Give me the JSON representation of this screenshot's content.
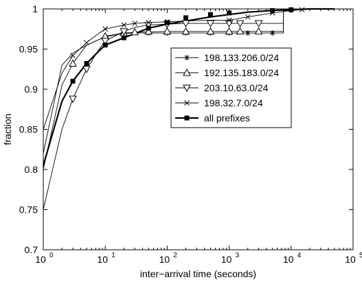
{
  "chart_data": {
    "type": "line",
    "title": "",
    "xlabel": "inter−arrival time (seconds)",
    "ylabel": "fraction",
    "xscale": "log",
    "xlim": [
      1,
      100000
    ],
    "ylim": [
      0.7,
      1.0
    ],
    "grid": false,
    "legend_position": "center-right",
    "x_ticks": [
      {
        "value": 1,
        "base": "10",
        "exp": "0"
      },
      {
        "value": 10,
        "base": "10",
        "exp": "1"
      },
      {
        "value": 100,
        "base": "10",
        "exp": "2"
      },
      {
        "value": 1000,
        "base": "10",
        "exp": "3"
      },
      {
        "value": 10000,
        "base": "10",
        "exp": "4"
      },
      {
        "value": 100000,
        "base": "10",
        "exp": "5"
      }
    ],
    "y_ticks": [
      {
        "value": 0.7,
        "label": "0.7"
      },
      {
        "value": 0.75,
        "label": "0.75"
      },
      {
        "value": 0.8,
        "label": "0.8"
      },
      {
        "value": 0.85,
        "label": "0.85"
      },
      {
        "value": 0.9,
        "label": "0.9"
      },
      {
        "value": 0.95,
        "label": "0.95"
      },
      {
        "value": 1.0,
        "label": "1"
      }
    ],
    "series": [
      {
        "name": "198.133.206.0/24",
        "marker": "star",
        "bold": false,
        "points": [
          [
            1,
            0.82
          ],
          [
            2,
            0.93
          ],
          [
            3,
            0.945
          ],
          [
            5,
            0.955
          ],
          [
            8,
            0.962
          ],
          [
            10,
            0.965
          ],
          [
            15,
            0.968
          ],
          [
            20,
            0.969
          ],
          [
            30,
            0.97
          ],
          [
            100,
            0.97
          ],
          [
            200,
            0.97
          ],
          [
            500,
            0.97
          ],
          [
            1000,
            0.97
          ],
          [
            2000,
            0.97
          ],
          [
            5000,
            0.97
          ],
          [
            7500,
            0.97
          ],
          [
            7500,
            0.997
          ],
          [
            10000,
            0.998
          ],
          [
            20000,
            1.0
          ]
        ],
        "markers": [
          [
            10,
            0.965
          ],
          [
            20,
            0.969
          ],
          [
            50,
            0.97
          ],
          [
            100,
            0.97
          ],
          [
            200,
            0.97
          ],
          [
            500,
            0.97
          ],
          [
            1000,
            0.97
          ],
          [
            2000,
            0.97
          ],
          [
            5000,
            0.97
          ]
        ]
      },
      {
        "name": "192.135.183.0/24",
        "marker": "triangle-up",
        "bold": false,
        "points": [
          [
            1,
            0.8
          ],
          [
            2,
            0.905
          ],
          [
            3,
            0.932
          ],
          [
            5,
            0.955
          ],
          [
            8,
            0.962
          ],
          [
            10,
            0.966
          ],
          [
            20,
            0.97
          ],
          [
            30,
            0.971
          ],
          [
            100,
            0.972
          ],
          [
            1000,
            0.972
          ],
          [
            5000,
            0.972
          ],
          [
            7500,
            0.972
          ],
          [
            7500,
            0.998
          ],
          [
            10000,
            0.999
          ],
          [
            20000,
            1.0
          ]
        ],
        "markers": [
          [
            3,
            0.932
          ],
          [
            10,
            0.966
          ],
          [
            20,
            0.97
          ],
          [
            30,
            0.971
          ],
          [
            50,
            0.972
          ],
          [
            100,
            0.972
          ],
          [
            200,
            0.972
          ],
          [
            500,
            0.972
          ],
          [
            1000,
            0.972
          ],
          [
            1500,
            0.972
          ],
          [
            3000,
            0.972
          ]
        ]
      },
      {
        "name": "203.10.63.0/24",
        "marker": "triangle-down",
        "bold": false,
        "points": [
          [
            1,
            0.75
          ],
          [
            2,
            0.85
          ],
          [
            3,
            0.888
          ],
          [
            5,
            0.925
          ],
          [
            8,
            0.95
          ],
          [
            10,
            0.96
          ],
          [
            20,
            0.972
          ],
          [
            30,
            0.977
          ],
          [
            50,
            0.98
          ],
          [
            100,
            0.981
          ],
          [
            200,
            0.982
          ],
          [
            1000,
            0.982
          ],
          [
            5000,
            0.982
          ],
          [
            7500,
            0.982
          ],
          [
            7500,
            0.999
          ],
          [
            20000,
            1.0
          ]
        ],
        "markers": [
          [
            3,
            0.888
          ],
          [
            5,
            0.925
          ],
          [
            10,
            0.96
          ],
          [
            20,
            0.972
          ],
          [
            50,
            0.98
          ],
          [
            100,
            0.981
          ],
          [
            200,
            0.982
          ],
          [
            500,
            0.982
          ],
          [
            1000,
            0.982
          ],
          [
            1500,
            0.982
          ],
          [
            3000,
            0.982
          ]
        ]
      },
      {
        "name": "198.32.7.0/24",
        "marker": "x",
        "bold": false,
        "points": [
          [
            1,
            0.85
          ],
          [
            2,
            0.92
          ],
          [
            3,
            0.942
          ],
          [
            5,
            0.958
          ],
          [
            8,
            0.97
          ],
          [
            10,
            0.975
          ],
          [
            20,
            0.98
          ],
          [
            30,
            0.982
          ],
          [
            50,
            0.983
          ],
          [
            100,
            0.984
          ],
          [
            200,
            0.985
          ],
          [
            500,
            0.986
          ],
          [
            1000,
            0.986
          ],
          [
            2000,
            0.99
          ],
          [
            5000,
            0.995
          ],
          [
            10000,
            0.998
          ],
          [
            15000,
            0.999
          ],
          [
            20000,
            1.0
          ],
          [
            50000,
            1.0
          ]
        ],
        "markers": [
          [
            3,
            0.942
          ],
          [
            5,
            0.958
          ],
          [
            10,
            0.975
          ],
          [
            20,
            0.98
          ],
          [
            30,
            0.982
          ],
          [
            50,
            0.983
          ],
          [
            100,
            0.984
          ],
          [
            1000,
            0.986
          ],
          [
            2000,
            0.99
          ],
          [
            5000,
            0.995
          ],
          [
            15000,
            0.999
          ]
        ]
      },
      {
        "name": "all prefixes",
        "marker": "square-filled",
        "bold": true,
        "points": [
          [
            1,
            0.805
          ],
          [
            2,
            0.885
          ],
          [
            3,
            0.91
          ],
          [
            5,
            0.932
          ],
          [
            8,
            0.948
          ],
          [
            10,
            0.955
          ],
          [
            20,
            0.964
          ],
          [
            50,
            0.976
          ],
          [
            100,
            0.981
          ],
          [
            200,
            0.985
          ],
          [
            500,
            0.99
          ],
          [
            1000,
            0.993
          ],
          [
            2000,
            0.996
          ],
          [
            5000,
            0.998
          ],
          [
            10000,
            0.999
          ],
          [
            20000,
            1.0
          ],
          [
            50000,
            1.0
          ]
        ],
        "markers": [
          [
            3,
            0.91
          ],
          [
            5,
            0.932
          ],
          [
            10,
            0.955
          ],
          [
            20,
            0.964
          ],
          [
            50,
            0.976
          ],
          [
            100,
            0.983
          ],
          [
            200,
            0.989
          ],
          [
            500,
            0.993
          ],
          [
            1000,
            0.995
          ],
          [
            5000,
            0.998
          ],
          [
            10000,
            0.999
          ]
        ]
      }
    ]
  }
}
